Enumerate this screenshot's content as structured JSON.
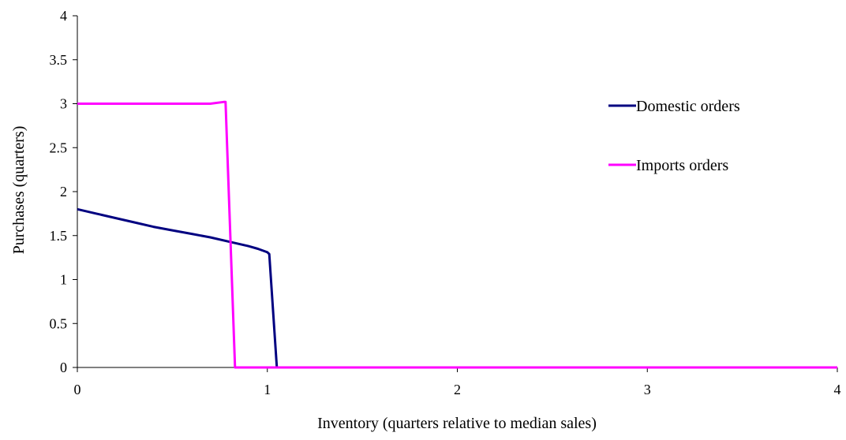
{
  "chart_data": {
    "type": "line",
    "title": "",
    "xlabel": "Inventory (quarters relative to median sales)",
    "ylabel": "Purchases  (quarters)",
    "xlim": [
      0,
      4
    ],
    "ylim": [
      0,
      4
    ],
    "x_ticks": [
      "0",
      "1",
      "2",
      "3",
      "4"
    ],
    "y_ticks": [
      "0",
      "0.5",
      "1",
      "1.5",
      "2",
      "2.5",
      "3",
      "3.5",
      "4"
    ],
    "grid": false,
    "legend_position": "right",
    "series": [
      {
        "name": "Domestic orders",
        "color": "#000080",
        "x": [
          0,
          0.1,
          0.2,
          0.3,
          0.4,
          0.5,
          0.6,
          0.7,
          0.8,
          0.9,
          0.95,
          1.0,
          1.01,
          1.05,
          1.5,
          2,
          3,
          4
        ],
        "y": [
          1.8,
          1.75,
          1.7,
          1.65,
          1.6,
          1.56,
          1.52,
          1.48,
          1.43,
          1.38,
          1.35,
          1.31,
          1.29,
          0,
          0,
          0,
          0,
          0
        ]
      },
      {
        "name": "Imports orders",
        "color": "#ff00ff",
        "x": [
          0,
          0.3,
          0.5,
          0.7,
          0.77,
          0.78,
          0.83,
          1,
          2,
          3,
          4
        ],
        "y": [
          3,
          3,
          3.0,
          3.0,
          3.02,
          3.02,
          0,
          0,
          0,
          0,
          0
        ]
      }
    ]
  }
}
